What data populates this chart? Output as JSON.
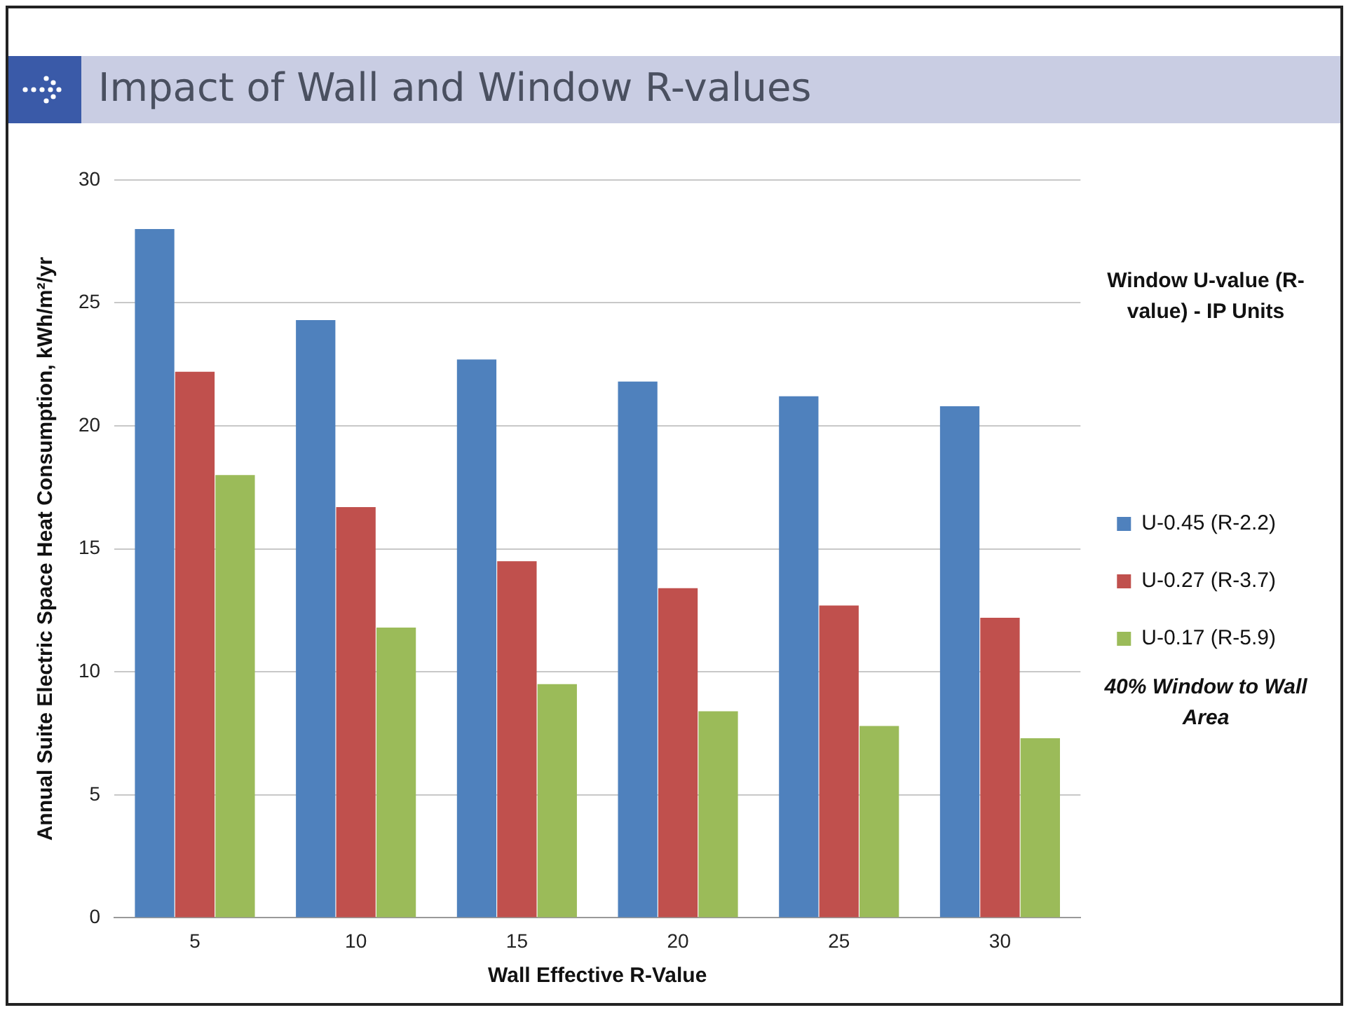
{
  "chart_data": {
    "type": "bar",
    "title": "Impact of Wall and Window R-values",
    "xlabel": "Wall Effective R-Value",
    "ylabel": "Annual Suite Electric Space Heat Consumption, kWh/m²/yr",
    "legend_title": "Window U-value (R-value) - IP Units",
    "annotations": [
      "40% Window to Wall Area"
    ],
    "categories": [
      "5",
      "10",
      "15",
      "20",
      "25",
      "30"
    ],
    "series": [
      {
        "name": "U-0.45 (R-2.2)",
        "color": "#4f81bd",
        "values": [
          28.0,
          24.3,
          22.7,
          21.8,
          21.2,
          20.8
        ]
      },
      {
        "name": "U-0.27 (R-3.7)",
        "color": "#c0504d",
        "values": [
          22.2,
          16.7,
          14.5,
          13.4,
          12.7,
          12.2
        ]
      },
      {
        "name": "U-0.17 (R-5.9)",
        "color": "#9bbb59",
        "values": [
          18.0,
          11.8,
          9.5,
          8.4,
          7.8,
          7.3
        ]
      }
    ],
    "ylim": [
      0,
      30
    ],
    "yticks": [
      0,
      5,
      10,
      15,
      20,
      25,
      30
    ],
    "grid": "y",
    "legend": "right"
  }
}
